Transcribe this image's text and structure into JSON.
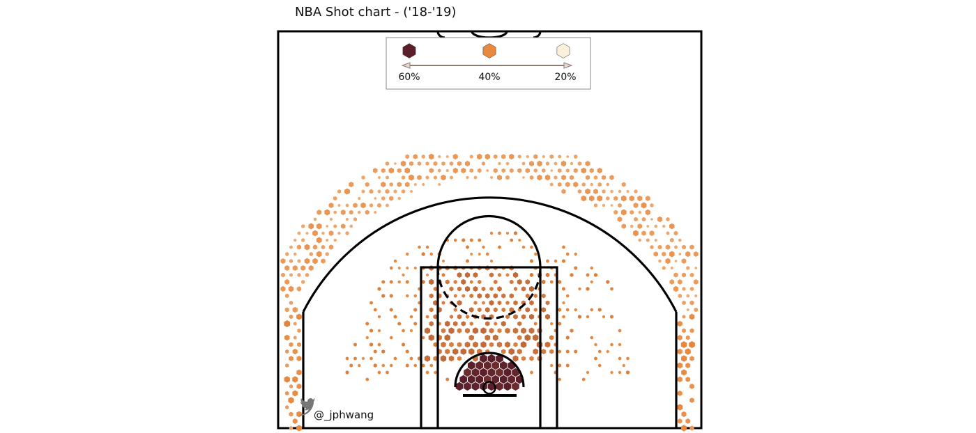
{
  "chart_data": {
    "type": "heatmap",
    "title": "NBA Shot chart - ('18-'19)",
    "subtype": "hexbin-shot-chart",
    "legend": {
      "placement": "top-center",
      "items": [
        {
          "label": "60%",
          "color": "#5a1f2b"
        },
        {
          "label": "40%",
          "color": "#e8893f"
        },
        {
          "label": "20%",
          "color": "#fbf0dc"
        }
      ]
    },
    "color_scale": {
      "low": "#fbf0dc",
      "mid": "#e8893f",
      "high": "#5a1f2b"
    },
    "zones": [
      {
        "zone": "restricted-area",
        "fg_pct": 0.6
      },
      {
        "zone": "paint",
        "fg_pct": 0.43
      },
      {
        "zone": "mid-range",
        "fg_pct": 0.39
      },
      {
        "zone": "above-break-three",
        "fg_pct": 0.35
      },
      {
        "zone": "corner-three",
        "fg_pct": 0.38
      }
    ],
    "grid": false
  },
  "credit": {
    "icon": "twitter-bird-icon",
    "handle": "@_jphwang",
    "icon_color": "#777777"
  }
}
